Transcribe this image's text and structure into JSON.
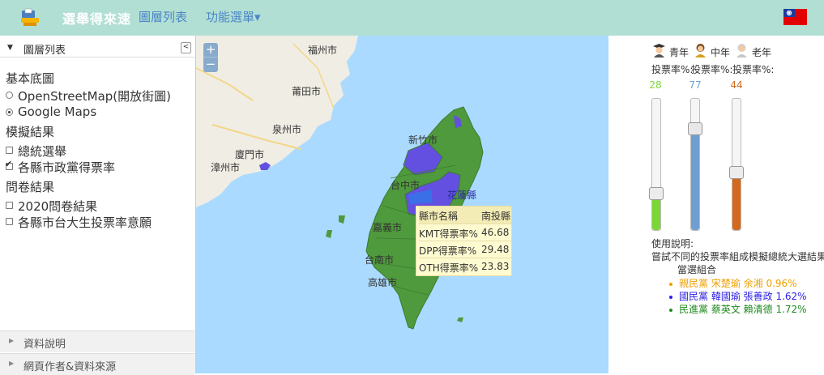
{
  "navbar": {
    "brand": "選舉得來速",
    "links": [
      "圖層列表",
      "功能選單▾"
    ]
  },
  "left_panel": {
    "title": "圖層列表",
    "sections": [
      {
        "heading": "基本底圖",
        "items": [
          {
            "label": "OpenStreetMap(開放街圖)",
            "type": "radio",
            "checked": false
          },
          {
            "label": "Google Maps",
            "type": "radio",
            "checked": true
          }
        ]
      },
      {
        "heading": "模擬結果",
        "items": [
          {
            "label": "總統選舉",
            "type": "checkbox",
            "checked": false
          },
          {
            "label": "各縣市政黨得票率",
            "type": "checkbox",
            "checked": true
          }
        ]
      },
      {
        "heading": "問卷結果",
        "items": [
          {
            "label": "2020問卷結果",
            "type": "checkbox",
            "checked": false
          },
          {
            "label": "各縣市台大生投票率意願",
            "type": "checkbox",
            "checked": false
          }
        ]
      }
    ],
    "footers": [
      "資料說明",
      "網頁作者&資料來源"
    ]
  },
  "map": {
    "zoom_in": "+",
    "zoom_out": "−",
    "cities": [
      "福州市",
      "莆田市",
      "泉州市",
      "廈門市",
      "漳州市"
    ],
    "counties": [
      "新竹市",
      "台中市",
      "花蓮縣",
      "嘉義市",
      "台南市",
      "高雄市"
    ],
    "tooltip": {
      "header": [
        "縣市名稱",
        "南投縣"
      ],
      "rows": [
        [
          "KMT得票率%",
          "46.68"
        ],
        [
          "DPP得票率%",
          "29.48"
        ],
        [
          "OTH得票率%",
          "23.83"
        ]
      ]
    },
    "colors": {
      "sea": "#aadaff",
      "land": "#f0ede4",
      "green": "#4f9a3d",
      "purple": "#6450e0",
      "blue": "#3a6fe8"
    }
  },
  "right_panel": {
    "groups": [
      {
        "label": "青年",
        "turnout_label": "投票率%:",
        "value": "28",
        "color": "#7bd638",
        "level": 0.28
      },
      {
        "label": "中年",
        "turnout_label": "投票率%:",
        "value": "77",
        "color": "#6f9fd1",
        "level": 0.77
      },
      {
        "label": "老年",
        "turnout_label": "投票率%:",
        "value": "44",
        "color": "#d2691e",
        "level": 0.44
      }
    ],
    "usage_title": "使用說明:",
    "usage_text": "嘗試不同的投票率組成模擬總統大選結果",
    "combo_title": "當選組合",
    "combos": [
      {
        "text": "親民黨 宋楚瑜 余湘 0.96%",
        "color": "#f0a000"
      },
      {
        "text": "國民黨 韓國瑜 張善政 1.62%",
        "color": "#2a1ee6"
      },
      {
        "text": "民進黨 蔡英文 賴清德 1.72%",
        "color": "#1e8a1e"
      }
    ]
  }
}
